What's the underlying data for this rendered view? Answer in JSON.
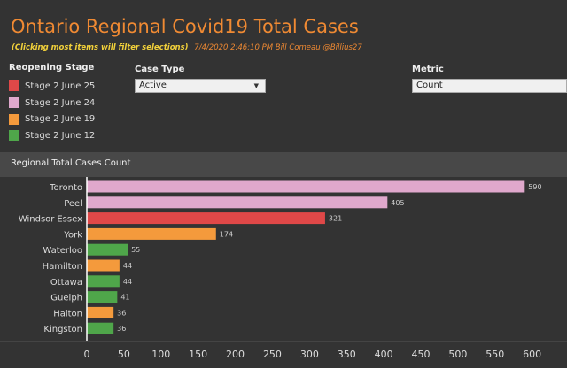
{
  "header": {
    "title": "Ontario Regional Covid19  Total Cases",
    "hint": "(Clicking most items will filter selections)",
    "meta": "7/4/2020 2:46:10 PM  Bill Comeau @Billius27"
  },
  "legend": {
    "title": "Reopening Stage",
    "items": [
      {
        "label": "Stage 2 June 25",
        "color": "#e04848"
      },
      {
        "label": "Stage 2 June 24",
        "color": "#e0a8cc"
      },
      {
        "label": "Stage 2 June 19",
        "color": "#f49a3c"
      },
      {
        "label": "Stage 2 June 12",
        "color": "#4fa64a"
      }
    ]
  },
  "filters": {
    "case_type": {
      "label": "Case Type",
      "value": "Active"
    },
    "metric": {
      "label": "Metric",
      "value": "Count"
    }
  },
  "chart": {
    "header": "Regional  Total Cases Count"
  },
  "chart_data": {
    "type": "bar",
    "orientation": "horizontal",
    "categories": [
      "Toronto",
      "Peel",
      "Windsor-Essex",
      "York",
      "Waterloo",
      "Hamilton",
      "Ottawa",
      "Guelph",
      "Halton",
      "Kingston"
    ],
    "values": [
      590,
      405,
      321,
      174,
      55,
      44,
      44,
      41,
      36,
      36
    ],
    "colors": [
      "#e0a8cc",
      "#e0a8cc",
      "#e04848",
      "#f49a3c",
      "#4fa64a",
      "#f49a3c",
      "#4fa64a",
      "#4fa64a",
      "#f49a3c",
      "#4fa64a"
    ],
    "xlim": [
      0,
      620
    ],
    "xticks": [
      0,
      50,
      100,
      150,
      200,
      250,
      300,
      350,
      400,
      450,
      500,
      550,
      600
    ]
  }
}
